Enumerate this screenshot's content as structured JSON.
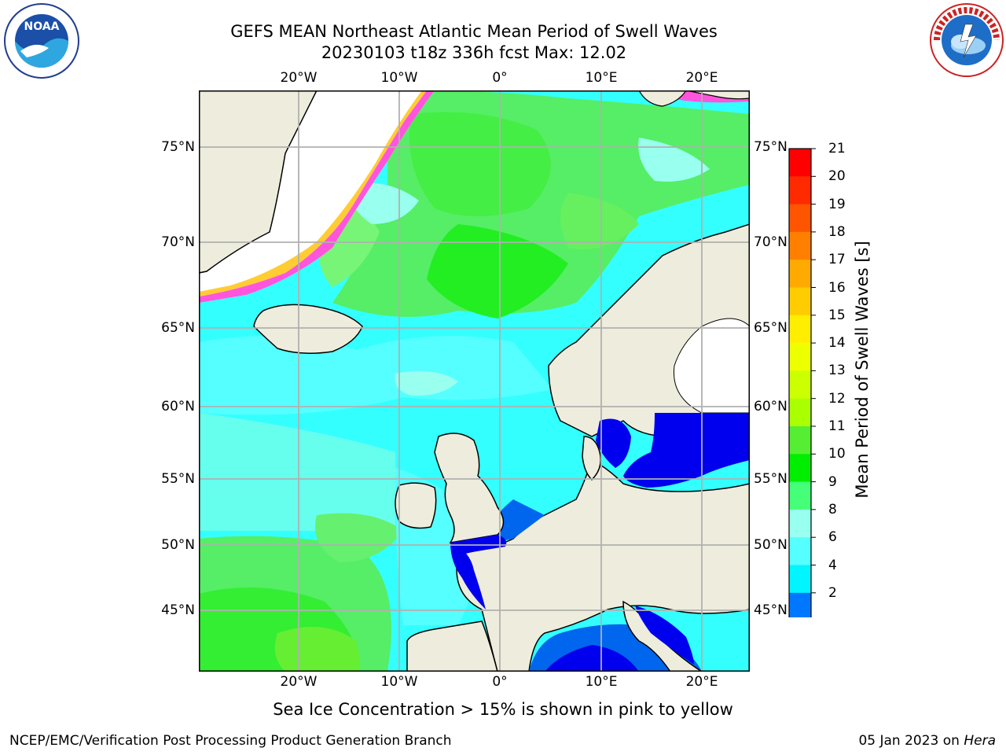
{
  "title": {
    "line1": "GEFS MEAN Northeast Atlantic Mean Period of Swell Waves",
    "line2": "20230103 t18z 336h fcst   Max: 12.02"
  },
  "logos": {
    "left": {
      "name": "noaa-logo",
      "text": "NOAA",
      "ring_text": "NATIONAL OCEANIC AND ATMOSPHERIC ADMINISTRATION · U.S. DEPARTMENT OF COMMERCE"
    },
    "right": {
      "name": "national-weather-service-logo",
      "ring_text": "NATIONAL WEATHER SERVICE"
    }
  },
  "map": {
    "lon_labels": [
      "20°W",
      "10°W",
      "0°",
      "10°E",
      "20°E"
    ],
    "lat_labels": [
      "75°N",
      "70°N",
      "65°N",
      "60°N",
      "55°N",
      "50°N",
      "45°N"
    ],
    "colors": {
      "ocean_base": "#33ffff",
      "land": "#eeecdc",
      "ice_free_white": "#ffffff",
      "grid": "#b0b0b0",
      "coast": "#000000"
    }
  },
  "colorbar": {
    "title": "Mean Period of Swell Waves [s]",
    "ticks": [
      "21",
      "20",
      "19",
      "18",
      "17",
      "16",
      "15",
      "14",
      "13",
      "12",
      "11",
      "10",
      "9",
      "8",
      "6",
      "4",
      "2"
    ],
    "bands": [
      "#ff0000",
      "#ff2a00",
      "#ff5500",
      "#ff8000",
      "#ffaa00",
      "#ffcc00",
      "#ffee00",
      "#eeff00",
      "#ccff00",
      "#aaff00",
      "#55ee33",
      "#00ee00",
      "#44ff77",
      "#99ffee",
      "#55ffff",
      "#00f5ff",
      "#0077ff"
    ],
    "under_color": "#0000ee"
  },
  "footnote": "Sea Ice Concentration > 15% is shown in pink to yellow",
  "footer": {
    "left": "NCEP/EMC/Verification Post Processing Product Generation Branch",
    "date": "05 Jan 2023 on ",
    "host": "Hera"
  }
}
